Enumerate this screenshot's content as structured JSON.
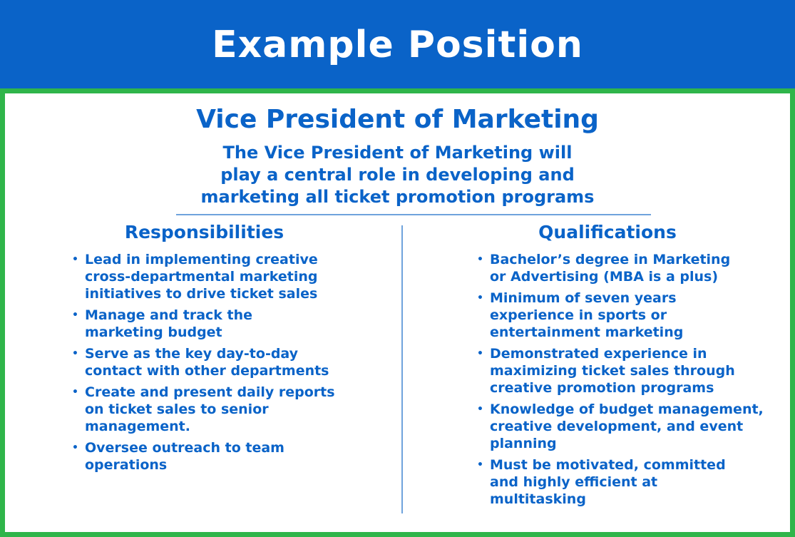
{
  "header": {
    "title": "Example Position"
  },
  "position": {
    "title": "Vice President of Marketing",
    "summary": "The Vice President of Marketing will\nplay a central role in developing and\nmarketing all ticket promotion programs"
  },
  "responsibilities": {
    "heading": "Responsibilities",
    "items": [
      "Lead in implementing creative\ncross-departmental marketing\ninitiatives to drive ticket sales",
      "Manage and track the\nmarketing budget",
      "Serve as the key day-to-day\ncontact with other departments",
      "Create and present daily reports\non ticket sales to senior\nmanagement.",
      "Oversee outreach to team\noperations"
    ]
  },
  "qualifications": {
    "heading": "Qualifications",
    "items": [
      "Bachelor’s degree in Marketing\nor Advertising (MBA is a plus)",
      "Minimum of seven years\nexperience in sports or\nentertainment marketing",
      "Demonstrated experience in\nmaximizing ticket sales through\ncreative promotion programs",
      "Knowledge of budget management,\ncreative development, and event\nplanning",
      "Must be motivated, committed\nand highly efficient at\nmultitasking"
    ]
  },
  "colors": {
    "header_bg": "#0a63c8",
    "border": "#2fb54a",
    "text": "#0a63c8"
  }
}
